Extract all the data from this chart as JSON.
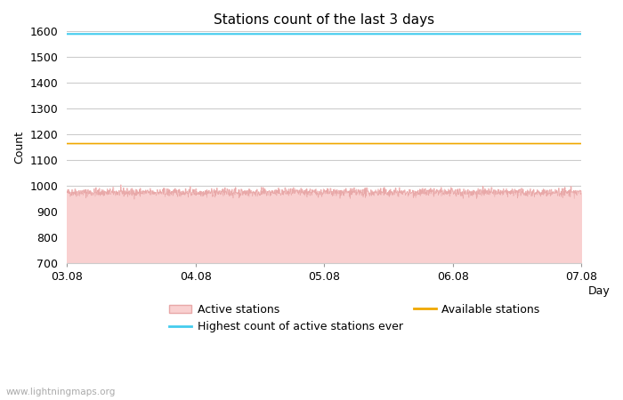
{
  "title": "Stations count of the last 3 days",
  "xlabel": "Day",
  "ylabel": "Count",
  "ylim": [
    700,
    1600
  ],
  "yticks": [
    700,
    800,
    900,
    1000,
    1100,
    1200,
    1300,
    1400,
    1500,
    1600
  ],
  "x_start": 0,
  "x_end": 96,
  "xtick_positions": [
    0,
    24,
    48,
    72,
    96
  ],
  "xtick_labels": [
    "03.08",
    "04.08",
    "05.08",
    "06.08",
    "07.08"
  ],
  "active_stations_base": 975,
  "active_stations_noise": 8,
  "available_stations_level": 1165,
  "highest_ever_level": 1590,
  "active_fill_color": "#f9d0d0",
  "active_line_color": "#e8a8a8",
  "available_color": "#f0a800",
  "highest_color": "#44ccee",
  "background_color": "#ffffff",
  "grid_color": "#cccccc",
  "watermark": "www.lightningmaps.org",
  "watermark_color": "#aaaaaa",
  "legend_labels": [
    "Active stations",
    "Highest count of active stations ever",
    "Available stations"
  ],
  "title_fontsize": 11,
  "axis_fontsize": 9,
  "tick_fontsize": 9
}
